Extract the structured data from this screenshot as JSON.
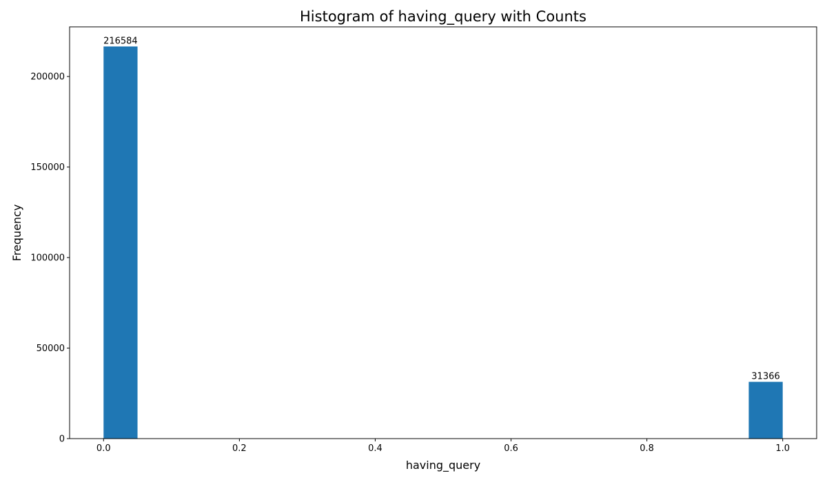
{
  "chart_data": {
    "type": "bar",
    "title": "Histogram of having_query with Counts",
    "xlabel": "having_query",
    "ylabel": "Frequency",
    "bin_count": 20,
    "bin_range": [
      0.0,
      1.0
    ],
    "bins": [
      {
        "start": 0.0,
        "end": 0.05,
        "count": 216584,
        "label": "216584"
      },
      {
        "start": 0.95,
        "end": 1.0,
        "count": 31366,
        "label": "31366"
      }
    ],
    "xlim": [
      -0.05,
      1.05
    ],
    "ylim": [
      0,
      227413
    ],
    "xticks": [
      {
        "value": 0.0,
        "label": "0.0"
      },
      {
        "value": 0.2,
        "label": "0.2"
      },
      {
        "value": 0.4,
        "label": "0.4"
      },
      {
        "value": 0.6,
        "label": "0.6"
      },
      {
        "value": 0.8,
        "label": "0.8"
      },
      {
        "value": 1.0,
        "label": "1.0"
      }
    ],
    "yticks": [
      {
        "value": 0,
        "label": "0"
      },
      {
        "value": 50000,
        "label": "50000"
      },
      {
        "value": 100000,
        "label": "100000"
      },
      {
        "value": 150000,
        "label": "150000"
      },
      {
        "value": 200000,
        "label": "200000"
      }
    ],
    "bar_color": "#1f77b4",
    "grid": false,
    "legend": "none"
  }
}
